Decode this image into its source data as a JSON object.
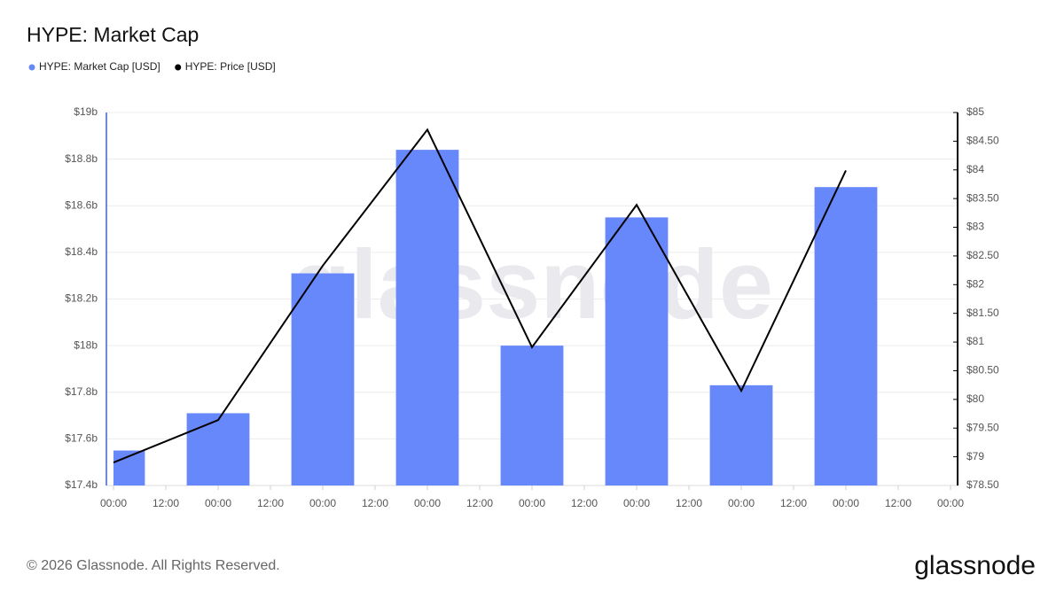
{
  "chart_data": {
    "type": "bar-line",
    "title": "HYPE: Market Cap",
    "x": [
      0,
      24,
      48,
      72,
      96,
      120,
      144,
      168
    ],
    "xlim": [
      0,
      192
    ],
    "xticks": [
      {
        "value": 0,
        "label": "00:00"
      },
      {
        "value": 12,
        "label": "12:00"
      },
      {
        "value": 24,
        "label": "00:00"
      },
      {
        "value": 36,
        "label": "12:00"
      },
      {
        "value": 48,
        "label": "00:00"
      },
      {
        "value": 60,
        "label": "12:00"
      },
      {
        "value": 72,
        "label": "00:00"
      },
      {
        "value": 84,
        "label": "12:00"
      },
      {
        "value": 96,
        "label": "00:00"
      },
      {
        "value": 108,
        "label": "12:00"
      },
      {
        "value": 120,
        "label": "00:00"
      },
      {
        "value": 132,
        "label": "12:00"
      },
      {
        "value": 144,
        "label": "00:00"
      },
      {
        "value": 156,
        "label": "12:00"
      },
      {
        "value": 168,
        "label": "00:00"
      },
      {
        "value": 180,
        "label": "12:00"
      },
      {
        "value": 192,
        "label": "00:00"
      }
    ],
    "ylim": [
      17.4,
      19
    ],
    "yticks": [
      {
        "value": 17.4,
        "label": "$17.4b"
      },
      {
        "value": 17.6,
        "label": "$17.6b"
      },
      {
        "value": 17.8,
        "label": "$17.8b"
      },
      {
        "value": 18,
        "label": "$18b"
      },
      {
        "value": 18.2,
        "label": "$18.2b"
      },
      {
        "value": 18.4,
        "label": "$18.4b"
      },
      {
        "value": 18.6,
        "label": "$18.6b"
      },
      {
        "value": 18.8,
        "label": "$18.8b"
      },
      {
        "value": 19,
        "label": "$19b"
      }
    ],
    "y2lim": [
      78.5,
      85
    ],
    "y2ticks": [
      {
        "value": 78.5,
        "label": "$78.50"
      },
      {
        "value": 79,
        "label": "$79"
      },
      {
        "value": 79.5,
        "label": "$79.50"
      },
      {
        "value": 80,
        "label": "$80"
      },
      {
        "value": 80.5,
        "label": "$80.50"
      },
      {
        "value": 81,
        "label": "$81"
      },
      {
        "value": 81.5,
        "label": "$81.50"
      },
      {
        "value": 82,
        "label": "$82"
      },
      {
        "value": 82.5,
        "label": "$82.50"
      },
      {
        "value": 83,
        "label": "$83"
      },
      {
        "value": 83.5,
        "label": "$83.50"
      },
      {
        "value": 84,
        "label": "$84"
      },
      {
        "value": 84.5,
        "label": "$84.50"
      },
      {
        "value": 85,
        "label": "$85"
      }
    ],
    "grid": true,
    "series": [
      {
        "name": "HYPE: Market Cap [USD]",
        "type": "bar",
        "color": "#6688fb",
        "values": [
          17.55,
          17.71,
          18.31,
          18.84,
          18.0,
          18.55,
          17.83,
          18.68
        ]
      },
      {
        "name": "HYPE: Price [USD]",
        "type": "line",
        "axis": "y2",
        "color": "#000000",
        "values": [
          78.9,
          79.64,
          82.33,
          84.7,
          80.91,
          83.39,
          80.15,
          83.99
        ]
      }
    ],
    "watermark": "glassnode",
    "footer": "© 2026 Glassnode. All Rights Reserved.",
    "logo": "glassnode"
  }
}
